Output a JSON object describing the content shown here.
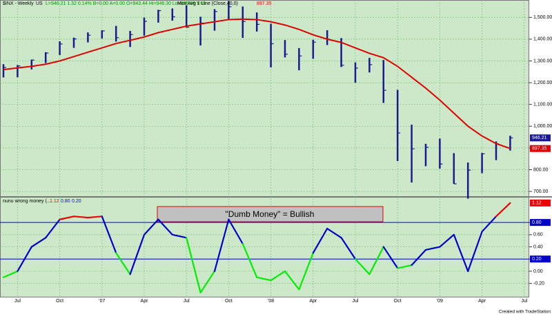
{
  "chart_data": [
    {
      "type": "ohlc",
      "title": "$INX - Weekly",
      "exchange": "US",
      "quote": "L=946.21  1.32  0.14%  B=0.00  A=0.00  O=943.44  Hi=946.30  Lo=935.66  V=0",
      "categories": [
        null,
        "Jul",
        null,
        null,
        "Oct",
        null,
        null,
        "'07",
        null,
        null,
        "Apr",
        null,
        null,
        "Jul",
        null,
        null,
        "Oct",
        null,
        null,
        "'08",
        null,
        null,
        "Apr",
        null,
        null,
        "Jul",
        null,
        null,
        "Oct",
        null,
        null,
        "'09",
        null,
        null,
        "Apr",
        null,
        null,
        "Jul"
      ],
      "series": [
        {
          "color": "#1a1a8c",
          "high": [
            1285,
            1281,
            1306,
            1340,
            1390,
            1407,
            1431,
            1441,
            1461,
            1438,
            1499,
            1535,
            1541,
            1556,
            1503,
            1538,
            1576,
            1550,
            1523,
            1471,
            1396,
            1359,
            1397,
            1441,
            1405,
            1293,
            1314,
            1304,
            1167,
            1007,
            919,
            943,
            876,
            833,
            877,
            930,
            956,
            null
          ],
          "low": [
            1224,
            1225,
            1261,
            1290,
            1327,
            1360,
            1385,
            1403,
            1389,
            1364,
            1416,
            1476,
            1485,
            1453,
            1371,
            1439,
            1490,
            1406,
            1435,
            1270,
            1316,
            1257,
            1310,
            1373,
            1272,
            1200,
            1247,
            1107,
            840,
            741,
            816,
            805,
            735,
            667,
            784,
            844,
            888,
            null
          ],
          "close": [
            1270,
            1277,
            1304,
            1336,
            1378,
            1401,
            1418,
            1438,
            1407,
            1421,
            1482,
            1531,
            1503,
            1455,
            1474,
            1527,
            1549,
            1481,
            1468,
            1379,
            1331,
            1323,
            1386,
            1400,
            1280,
            1267,
            1283,
            1165,
            969,
            896,
            903,
            826,
            735,
            798,
            873,
            919,
            946.21,
            null
          ]
        },
        {
          "name": "Mov Avg 1 Line (Close,40,0)",
          "color": "#e00000",
          "values": [
            1260,
            1268,
            1275,
            1285,
            1300,
            1320,
            1340,
            1360,
            1380,
            1395,
            1410,
            1430,
            1445,
            1460,
            1470,
            1480,
            1490,
            1492,
            1490,
            1480,
            1465,
            1445,
            1420,
            1400,
            1385,
            1360,
            1335,
            1315,
            1275,
            1225,
            1175,
            1120,
            1060,
            1000,
            955,
            920,
            897.35,
            null
          ]
        }
      ],
      "ylim": [
        675,
        1580
      ],
      "yticks": [
        {
          "value": 700,
          "label": "700.00"
        },
        {
          "value": 800,
          "label": "800.00"
        },
        {
          "value": 900,
          "label": "900.00"
        },
        {
          "value": 1000,
          "label": "1,000.00"
        },
        {
          "value": 1100,
          "label": "1,100.00"
        },
        {
          "value": 1200,
          "label": "1,200.00"
        },
        {
          "value": 1300,
          "label": "1,300.00"
        },
        {
          "value": 1400,
          "label": "1,400.00"
        },
        {
          "value": 1500,
          "label": "1,500.00"
        }
      ],
      "grid": true
    },
    {
      "type": "line",
      "title": "nunu wrong money (...",
      "series": [
        {
          "values": [
            -0.1,
            0.0,
            0.4,
            0.55,
            0.85,
            0.9,
            0.88,
            0.9,
            0.3,
            -0.05,
            0.6,
            0.85,
            0.6,
            0.55,
            -0.35,
            0.0,
            0.85,
            0.45,
            -0.1,
            -0.15,
            0.0,
            -0.3,
            0.3,
            0.7,
            0.55,
            0.2,
            -0.05,
            0.4,
            0.05,
            0.1,
            0.35,
            0.4,
            0.6,
            0.0,
            0.65,
            0.9,
            1.12,
            null
          ]
        }
      ],
      "colors": {
        "high": "#ee0000",
        "mid": "#0000cc",
        "low": "#00ee00"
      },
      "levels": [
        {
          "value": 0.8,
          "label": "0.80"
        },
        {
          "value": 0.2,
          "label": "0.20"
        }
      ],
      "annotation": "\"Dumb Money\" = Bullish",
      "ylim": [
        -0.43,
        1.22
      ],
      "yticks": [
        {
          "value": 0.8,
          "label": "0.80"
        },
        {
          "value": 0.6,
          "label": "0.60"
        },
        {
          "value": 0.4,
          "label": "0.40"
        },
        {
          "value": 0.2,
          "label": "0.20"
        },
        {
          "value": 0,
          "label": "0.00"
        },
        {
          "value": -0.2,
          "label": "-0.20"
        }
      ],
      "grid": true
    }
  ],
  "footer": "Created with TradeStation"
}
